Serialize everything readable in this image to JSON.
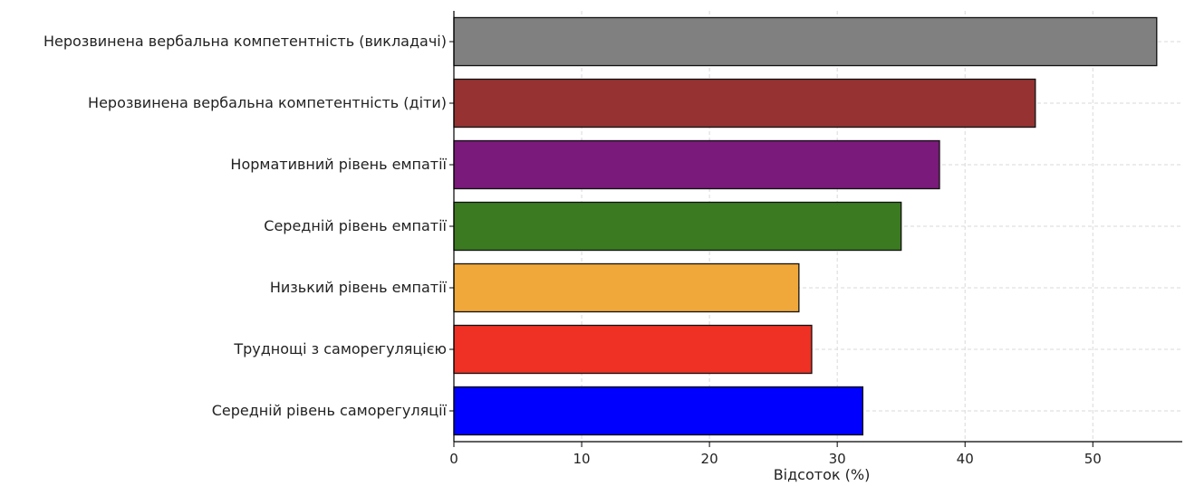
{
  "chart_data": {
    "type": "bar",
    "orientation": "horizontal",
    "categories": [
      "Нерозвинена вербальна компетентність (викладачі)",
      "Нерозвинена вербальна компетентність (діти)",
      "Нормативний рівень емпатії",
      "Середній рівень емпатії",
      "Низький рівень емпатії",
      "Труднощі з саморегуляцією",
      "Середній рівень саморегуляції"
    ],
    "values": [
      55,
      45.5,
      38,
      35,
      27,
      28,
      32
    ],
    "colors": [
      "#808080",
      "#963232",
      "#7a1a7a",
      "#3b7a20",
      "#f0a83a",
      "#ee3124",
      "#0000ff"
    ],
    "xlabel": "Відсоток (%)",
    "xlim": [
      0,
      57
    ],
    "xticks": [
      0,
      10,
      20,
      30,
      40,
      50
    ],
    "grid": true,
    "legend": false
  }
}
